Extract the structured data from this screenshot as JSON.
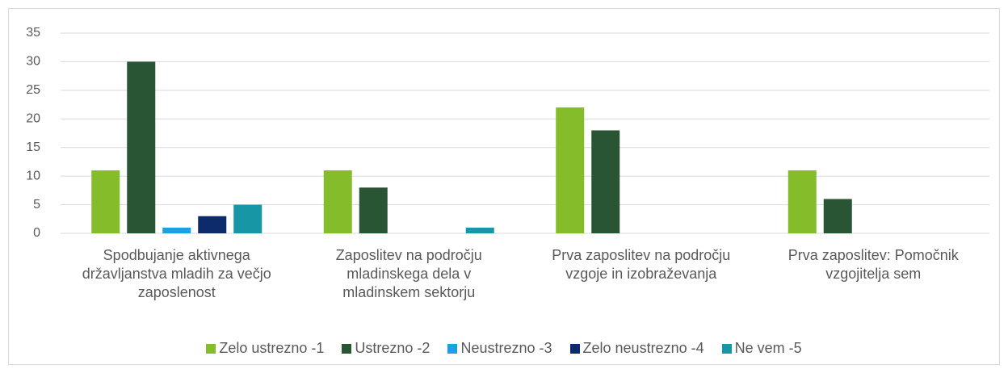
{
  "chart_data": {
    "type": "bar",
    "categories": [
      "Spodbujanje aktivnega državljanstva mladih za večjo zaposlenost",
      "Zaposlitev na področju mladinskega dela v mladinskem sektorju",
      "Prva zaposlitev na področju vzgoje in izobraževanja",
      "Prva zaposlitev: Pomočnik vzgojitelja sem"
    ],
    "series": [
      {
        "name": "Zelo ustrezno -1",
        "color": "#84bc2a",
        "values": [
          11,
          11,
          22,
          11
        ]
      },
      {
        "name": "Ustrezno -2",
        "color": "#2a5535",
        "values": [
          30,
          8,
          18,
          6
        ]
      },
      {
        "name": "Neustrezno -3",
        "color": "#1ba0e2",
        "values": [
          1,
          0,
          0,
          0
        ]
      },
      {
        "name": "Zelo neustrezno -4",
        "color": "#0d2a6b",
        "values": [
          3,
          0,
          0,
          0
        ]
      },
      {
        "name": "Ne vem -5",
        "color": "#1797a6",
        "values": [
          5,
          1,
          0,
          0
        ]
      }
    ],
    "ylim": [
      0,
      35
    ],
    "yticks": [
      0,
      5,
      10,
      15,
      20,
      25,
      30,
      35
    ],
    "grid": true,
    "legend": "bottom"
  }
}
